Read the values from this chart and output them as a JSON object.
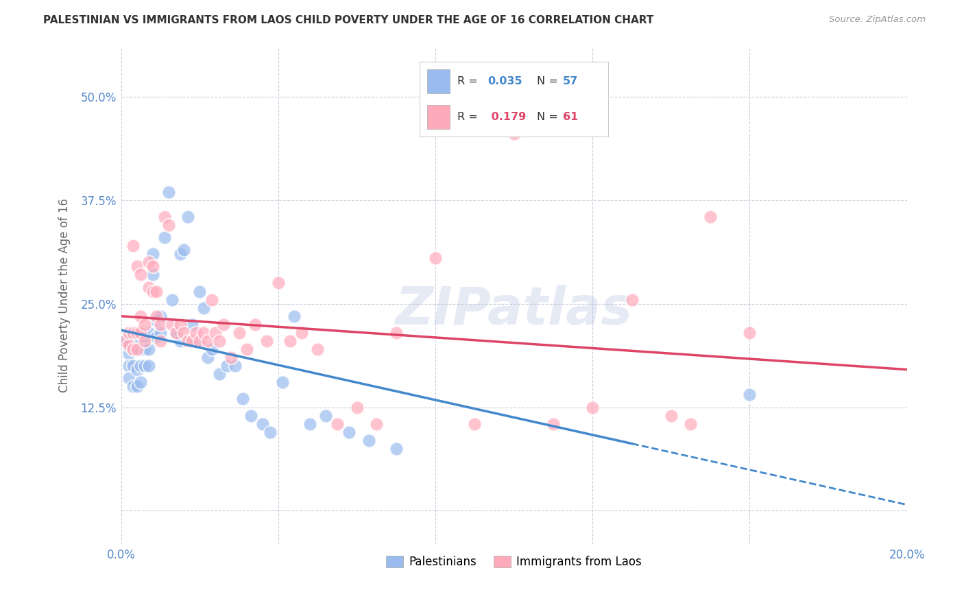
{
  "title": "PALESTINIAN VS IMMIGRANTS FROM LAOS CHILD POVERTY UNDER THE AGE OF 16 CORRELATION CHART",
  "source": "Source: ZipAtlas.com",
  "ylabel": "Child Poverty Under the Age of 16",
  "xlim": [
    0.0,
    0.2
  ],
  "ylim": [
    -0.04,
    0.56
  ],
  "yticks": [
    0.0,
    0.125,
    0.25,
    0.375,
    0.5
  ],
  "ytick_labels": [
    "",
    "12.5%",
    "25.0%",
    "37.5%",
    "50.0%"
  ],
  "xtick_positions": [
    0.0,
    0.04,
    0.08,
    0.12,
    0.16,
    0.2
  ],
  "xtick_labels": [
    "0.0%",
    "",
    "",
    "",
    "",
    "20.0%"
  ],
  "palestinians_color": "#99bbee",
  "laos_color": "#ffaabb",
  "trend_pal_color": "#4488cc",
  "trend_laos_color": "#dd4466",
  "R_pal": 0.035,
  "N_pal": 57,
  "R_laos": 0.179,
  "N_laos": 61,
  "legend_labels": [
    "Palestinians",
    "Immigrants from Laos"
  ],
  "watermark": "ZIPatlas",
  "background_color": "#ffffff",
  "grid_color": "#ccccdd",
  "tick_color": "#5588cc",
  "palestinians_x": [
    0.001,
    0.002,
    0.002,
    0.002,
    0.003,
    0.003,
    0.003,
    0.003,
    0.004,
    0.004,
    0.004,
    0.004,
    0.005,
    0.005,
    0.005,
    0.005,
    0.006,
    0.006,
    0.006,
    0.007,
    0.007,
    0.007,
    0.008,
    0.008,
    0.009,
    0.009,
    0.01,
    0.01,
    0.011,
    0.012,
    0.013,
    0.014,
    0.015,
    0.015,
    0.016,
    0.017,
    0.018,
    0.019,
    0.02,
    0.021,
    0.022,
    0.023,
    0.025,
    0.027,
    0.029,
    0.031,
    0.033,
    0.036,
    0.038,
    0.041,
    0.044,
    0.048,
    0.052,
    0.058,
    0.063,
    0.07,
    0.16
  ],
  "palestinians_y": [
    0.205,
    0.19,
    0.175,
    0.16,
    0.195,
    0.21,
    0.175,
    0.15,
    0.215,
    0.195,
    0.17,
    0.15,
    0.205,
    0.195,
    0.175,
    0.155,
    0.21,
    0.195,
    0.175,
    0.215,
    0.195,
    0.175,
    0.31,
    0.285,
    0.23,
    0.21,
    0.235,
    0.215,
    0.33,
    0.385,
    0.255,
    0.215,
    0.31,
    0.205,
    0.315,
    0.355,
    0.225,
    0.205,
    0.265,
    0.245,
    0.185,
    0.195,
    0.165,
    0.175,
    0.175,
    0.135,
    0.115,
    0.105,
    0.095,
    0.155,
    0.235,
    0.105,
    0.115,
    0.095,
    0.085,
    0.075,
    0.14
  ],
  "laos_x": [
    0.001,
    0.002,
    0.002,
    0.003,
    0.003,
    0.003,
    0.004,
    0.004,
    0.004,
    0.005,
    0.005,
    0.005,
    0.006,
    0.006,
    0.007,
    0.007,
    0.008,
    0.008,
    0.009,
    0.009,
    0.01,
    0.01,
    0.011,
    0.012,
    0.013,
    0.014,
    0.015,
    0.016,
    0.017,
    0.018,
    0.019,
    0.02,
    0.021,
    0.022,
    0.023,
    0.024,
    0.025,
    0.026,
    0.028,
    0.03,
    0.032,
    0.034,
    0.037,
    0.04,
    0.043,
    0.046,
    0.05,
    0.055,
    0.06,
    0.065,
    0.07,
    0.08,
    0.09,
    0.1,
    0.11,
    0.12,
    0.13,
    0.14,
    0.145,
    0.15,
    0.16
  ],
  "laos_y": [
    0.205,
    0.2,
    0.215,
    0.32,
    0.215,
    0.195,
    0.295,
    0.215,
    0.195,
    0.285,
    0.235,
    0.215,
    0.225,
    0.205,
    0.3,
    0.27,
    0.295,
    0.265,
    0.265,
    0.235,
    0.225,
    0.205,
    0.355,
    0.345,
    0.225,
    0.215,
    0.225,
    0.215,
    0.205,
    0.205,
    0.215,
    0.205,
    0.215,
    0.205,
    0.255,
    0.215,
    0.205,
    0.225,
    0.185,
    0.215,
    0.195,
    0.225,
    0.205,
    0.275,
    0.205,
    0.215,
    0.195,
    0.105,
    0.125,
    0.105,
    0.215,
    0.305,
    0.105,
    0.455,
    0.105,
    0.125,
    0.255,
    0.115,
    0.105,
    0.355,
    0.215
  ]
}
